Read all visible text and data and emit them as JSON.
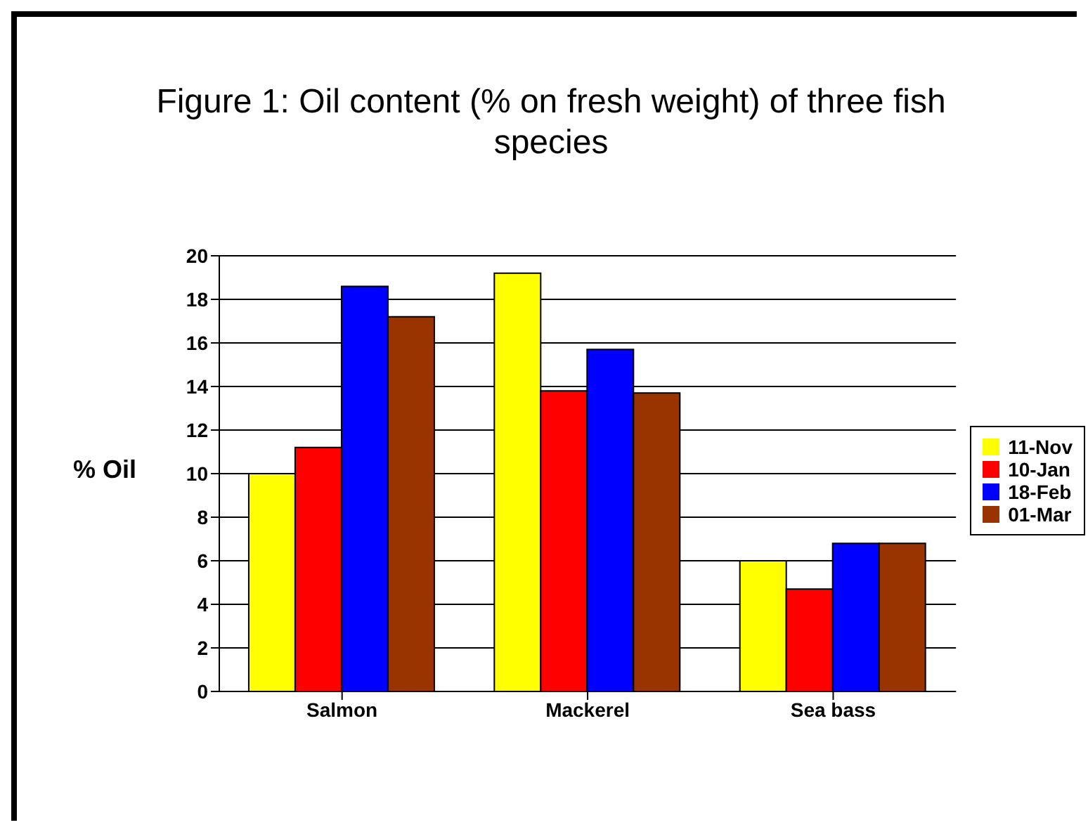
{
  "chart_data": {
    "type": "bar",
    "title": "Figure 1: Oil content (% on fresh weight) of three fish species",
    "ylabel": "% Oil",
    "categories": [
      "Salmon",
      "Mackerel",
      "Sea bass"
    ],
    "series": [
      {
        "name": "11-Nov",
        "color": "#ffff00",
        "values": [
          10,
          19.2,
          6
        ]
      },
      {
        "name": "10-Jan",
        "color": "#ff0000",
        "values": [
          11.2,
          13.8,
          4.7
        ]
      },
      {
        "name": "18-Feb",
        "color": "#0000ff",
        "values": [
          18.6,
          15.7,
          6.8
        ]
      },
      {
        "name": "01-Mar",
        "color": "#993300",
        "values": [
          17.2,
          13.7,
          6.8
        ]
      }
    ],
    "ylim": [
      0,
      20
    ],
    "yticks": [
      0,
      2,
      4,
      6,
      8,
      10,
      12,
      14,
      16,
      18,
      20
    ],
    "grid": "y",
    "legend": "right"
  }
}
